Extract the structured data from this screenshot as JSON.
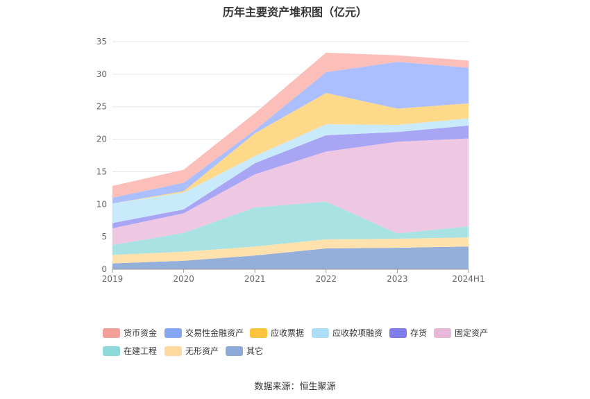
{
  "chart_data": {
    "type": "area",
    "stacked": true,
    "title": "历年主要资产堆积图（亿元）",
    "categories": [
      "2019",
      "2020",
      "2021",
      "2022",
      "2023",
      "2024H1"
    ],
    "ylim": [
      0,
      35
    ],
    "yticks": [
      0,
      5,
      10,
      15,
      20,
      25,
      30,
      35
    ],
    "grid": true,
    "legend_position": "bottom",
    "series": [
      {
        "name": "其它",
        "color": "#94afd9",
        "values": [
          0.9,
          1.3,
          2.1,
          3.2,
          3.3,
          3.5
        ]
      },
      {
        "name": "无形资产",
        "color": "#ffe1ad",
        "values": [
          1.3,
          1.4,
          1.4,
          1.4,
          1.4,
          1.4
        ]
      },
      {
        "name": "在建工程",
        "color": "#a8e2e2",
        "values": [
          1.5,
          2.9,
          6.0,
          5.8,
          0.8,
          1.7
        ]
      },
      {
        "name": "固定资产",
        "color": "#eec8e2",
        "values": [
          2.6,
          3.0,
          5.1,
          7.7,
          14.1,
          13.5
        ]
      },
      {
        "name": "存货",
        "color": "#a9a5f5",
        "values": [
          0.8,
          0.6,
          1.7,
          2.5,
          1.5,
          2.0
        ]
      },
      {
        "name": "应收款项融资",
        "color": "#c8eafb",
        "values": [
          3.0,
          2.6,
          1.1,
          1.7,
          1.1,
          1.1
        ]
      },
      {
        "name": "应收票据",
        "color": "#fed98a",
        "values": [
          0.0,
          0.2,
          3.5,
          4.8,
          2.5,
          2.3
        ]
      },
      {
        "name": "交易性金融资产",
        "color": "#abbffe",
        "values": [
          0.9,
          1.3,
          0.5,
          3.2,
          7.2,
          5.5
        ]
      },
      {
        "name": "货币资金",
        "color": "#fcbeb8",
        "values": [
          1.8,
          2.0,
          2.6,
          3.0,
          1.0,
          1.1
        ]
      }
    ]
  },
  "legend": [
    {
      "label": "货币资金",
      "color": "#f4a09a"
    },
    {
      "label": "交易性金融资产",
      "color": "#85a5f5"
    },
    {
      "label": "应收票据",
      "color": "#fcc43e"
    },
    {
      "label": "应收款项融资",
      "color": "#abdff9"
    },
    {
      "label": "存货",
      "color": "#7f7cec"
    },
    {
      "label": "固定资产",
      "color": "#e8b8d8"
    },
    {
      "label": "在建工程",
      "color": "#8dd9d9"
    },
    {
      "label": "无形资产",
      "color": "#ffd9a0"
    },
    {
      "label": "其它",
      "color": "#8eaad8"
    }
  ],
  "source_text": "数据来源：恒生聚源"
}
